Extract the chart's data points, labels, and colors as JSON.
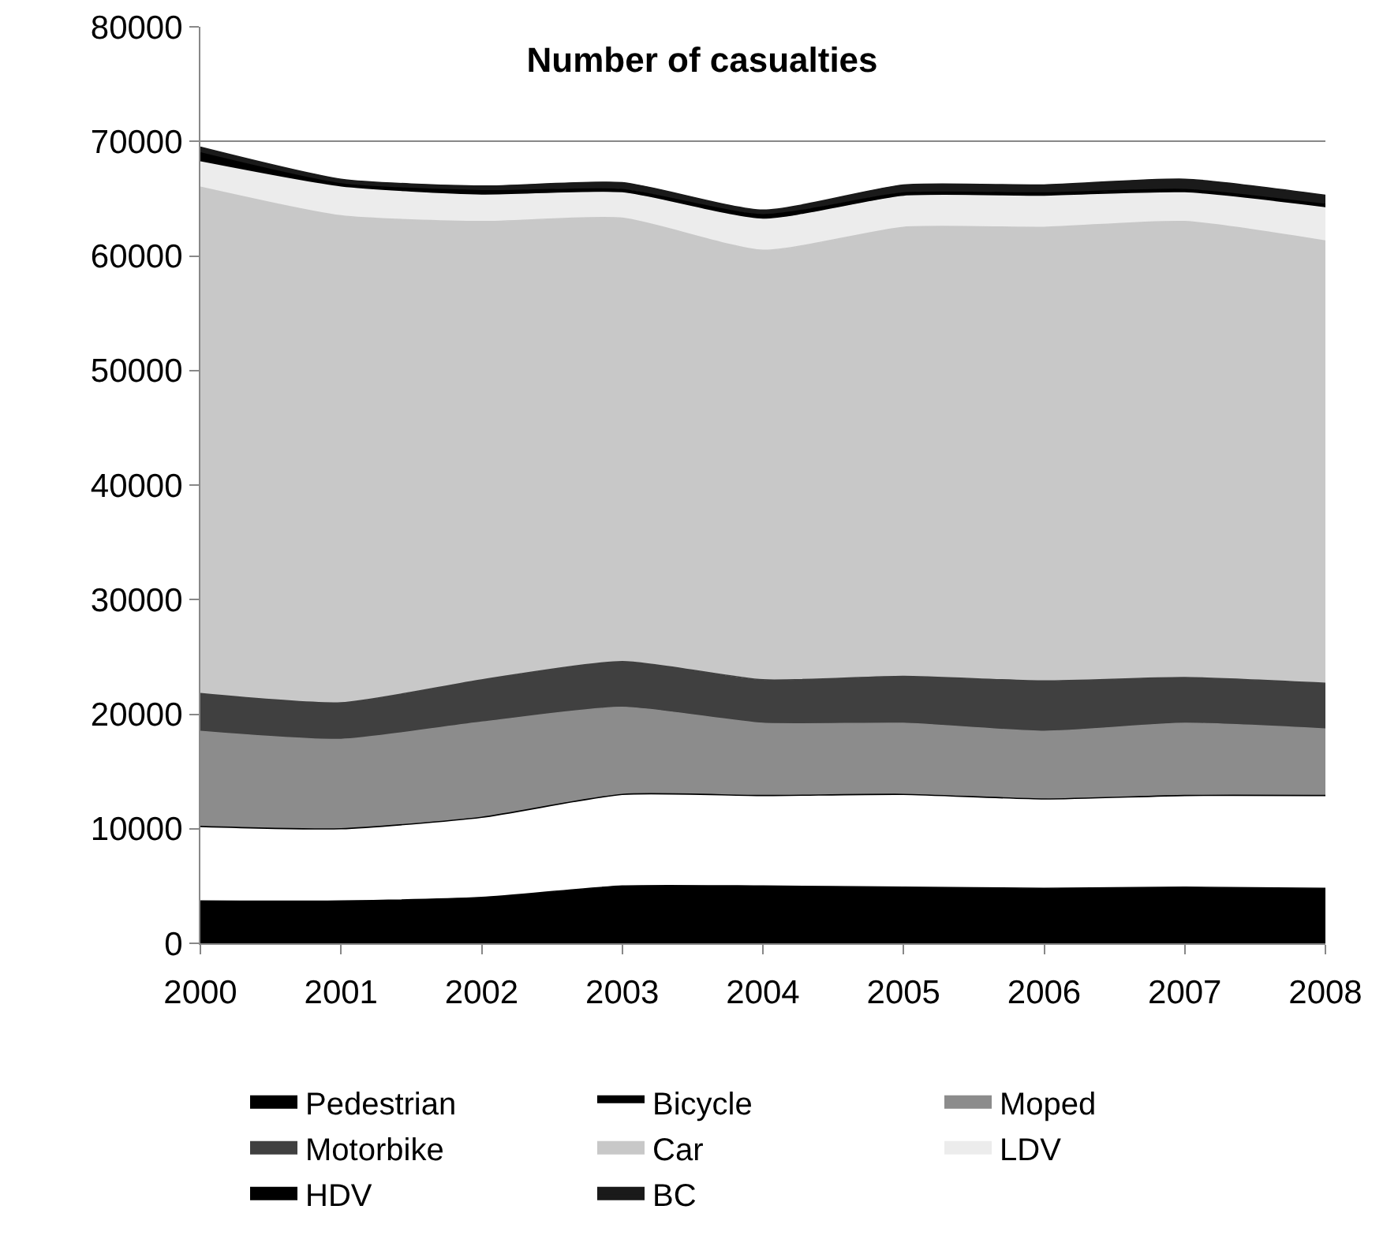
{
  "chart_data": {
    "type": "area",
    "stacked": true,
    "title": "Number of casualties",
    "x": [
      2000,
      2001,
      2002,
      2003,
      2004,
      2005,
      2006,
      2007,
      2008
    ],
    "xlim": [
      2000,
      2008
    ],
    "xticks": [
      2000,
      2001,
      2002,
      2003,
      2004,
      2005,
      2006,
      2007,
      2008
    ],
    "ylim": [
      0,
      80000
    ],
    "yticks": [
      0,
      10000,
      20000,
      30000,
      40000,
      50000,
      60000,
      70000,
      80000
    ],
    "grid": "y",
    "legend": "bottom",
    "series": [
      {
        "name": "Pedestrian",
        "color": "#000000",
        "values": [
          3700,
          3700,
          4000,
          5000,
          5000,
          4900,
          4800,
          4900,
          4800
        ]
      },
      {
        "name": "Bicycle",
        "color": "#ffffff",
        "values": [
          6500,
          6300,
          7000,
          8000,
          7900,
          8100,
          7800,
          8000,
          8100
        ]
      },
      {
        "name": "Moped",
        "color": "#8c8c8c",
        "values": [
          8300,
          7800,
          8300,
          7600,
          6300,
          6200,
          5900,
          6300,
          5800
        ]
      },
      {
        "name": "Motorbike",
        "color": "#404040",
        "values": [
          3300,
          3200,
          3700,
          4000,
          3800,
          4100,
          4400,
          4000,
          4000
        ]
      },
      {
        "name": "Car",
        "color": "#c8c8c8",
        "values": [
          44200,
          42500,
          40000,
          38700,
          37500,
          39200,
          39600,
          39800,
          38600
        ]
      },
      {
        "name": "LDV",
        "color": "#ececec",
        "values": [
          2200,
          2500,
          2300,
          2200,
          2700,
          2700,
          2700,
          2500,
          2900
        ]
      },
      {
        "name": "HDV",
        "color": "#000000",
        "values": [
          800,
          300,
          400,
          300,
          400,
          300,
          300,
          300,
          300
        ]
      },
      {
        "name": "BC",
        "color": "#1a1a1a",
        "values": [
          500,
          400,
          400,
          600,
          400,
          700,
          700,
          900,
          800
        ]
      }
    ]
  }
}
